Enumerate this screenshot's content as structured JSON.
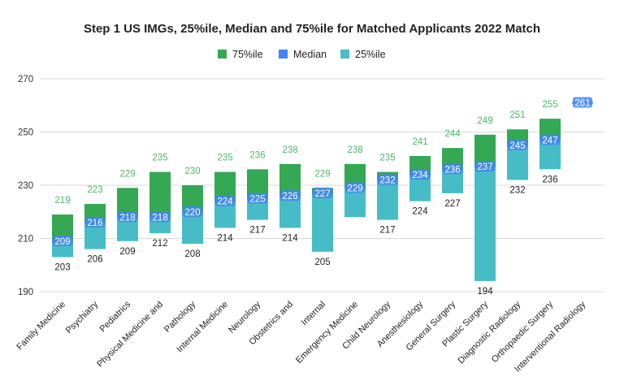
{
  "chart_data": {
    "type": "bar",
    "title": "Step 1 US IMGs, 25%ile, Median and 75%ile for Matched Applicants 2022 Match",
    "legend_position": "top",
    "legend": [
      "75%ile",
      "Median",
      "25%ile"
    ],
    "colors": {
      "p75": "#34a853",
      "median": "#4285f4",
      "p25": "#46bdc6",
      "p75_label": "#4cb86a",
      "p25_label": "#222222"
    },
    "ylim": [
      190,
      270
    ],
    "yticks": [
      190,
      210,
      230,
      250,
      270
    ],
    "grid": true,
    "categories": [
      "Family Medicine",
      "Psychiatry",
      "Pediatrics",
      "Physical Medicine and",
      "Pathology",
      "Internal Medicine",
      "Neurology",
      "Obstetrics and",
      "Internal",
      "Emergency Medicine",
      "Child Neurology",
      "Anesthesiology",
      "General Surgery",
      "Plastic Surgery",
      "Diagnostic Radiology",
      "Orthopaedic Surgery",
      "Interventional Radiology"
    ],
    "series": [
      {
        "name": "25%ile",
        "values": [
          203,
          206,
          209,
          212,
          208,
          214,
          217,
          214,
          205,
          218,
          217,
          224,
          227,
          194,
          232,
          236,
          null
        ]
      },
      {
        "name": "Median",
        "values": [
          209,
          216,
          218,
          218,
          220,
          224,
          225,
          226,
          227,
          229,
          232,
          234,
          236,
          237,
          245,
          247,
          261
        ]
      },
      {
        "name": "75%ile",
        "values": [
          219,
          223,
          229,
          235,
          230,
          235,
          236,
          238,
          229,
          238,
          235,
          241,
          244,
          249,
          251,
          255,
          null
        ]
      }
    ],
    "p25_labels_shown": [
      true,
      true,
      true,
      true,
      true,
      true,
      true,
      true,
      true,
      false,
      true,
      true,
      true,
      true,
      true,
      true,
      false
    ]
  }
}
